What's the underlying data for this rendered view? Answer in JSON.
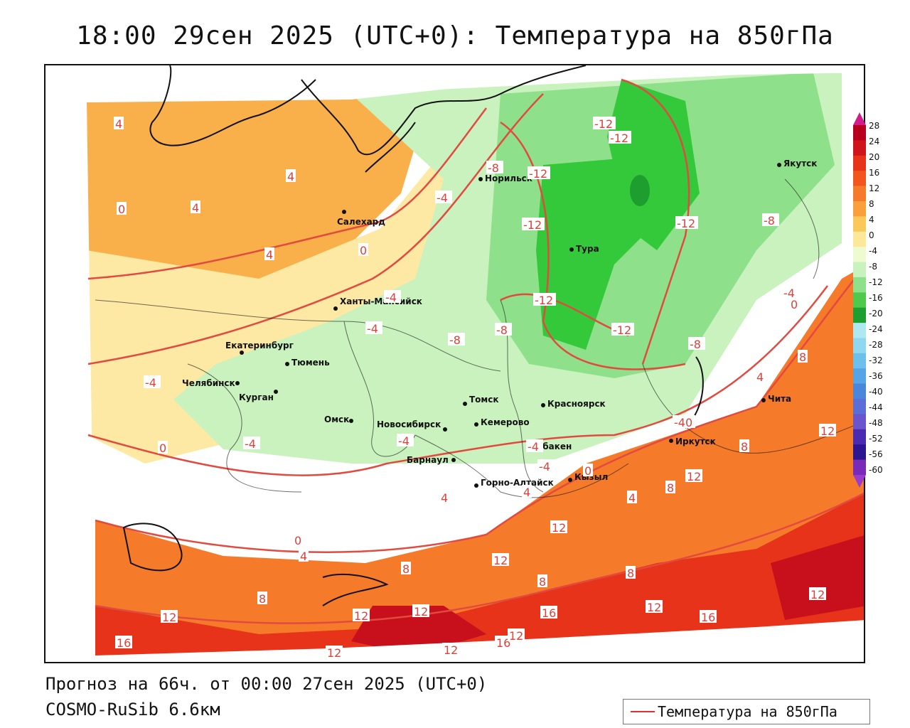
{
  "title": "18:00 29сен 2025 (UTC+0): Температура на 850гПа",
  "footer": {
    "forecast": "Прогноз на 66ч. от 00:00 27сен 2025 (UTC+0)",
    "model": "COSMO-RuSib 6.6км"
  },
  "legend": {
    "line_label": "Температура на 850гПа",
    "line_color": "#e03030"
  },
  "colorbar": {
    "labels": [
      "28",
      "24",
      "20",
      "16",
      "12",
      "8",
      "4",
      "0",
      "-4",
      "-8",
      "-12",
      "-16",
      "-20",
      "-24",
      "-28",
      "-32",
      "-36",
      "-40",
      "-44",
      "-48",
      "-52",
      "-56",
      "-60"
    ],
    "colors": [
      "#b8001e",
      "#d0141c",
      "#e6331a",
      "#f2561d",
      "#f57a2a",
      "#f9a03a",
      "#fbc95a",
      "#fde89a",
      "#eefbd0",
      "#c8f3bf",
      "#8fe08a",
      "#4fc94b",
      "#1f9e30",
      "#aee8f0",
      "#8fd8f0",
      "#6ec0ec",
      "#55a4e6",
      "#4a86dc",
      "#5a6ed8",
      "#6b55cc",
      "#4a2ab0",
      "#2d1490",
      "#7a2ab8"
    ]
  },
  "cities": [
    {
      "name": "Норильск"
    },
    {
      "name": "Якутск"
    },
    {
      "name": "Салехард"
    },
    {
      "name": "Тура"
    },
    {
      "name": "Ханты-Мансийск"
    },
    {
      "name": "Екатеринбург"
    },
    {
      "name": "Тюмень"
    },
    {
      "name": "Челябинск"
    },
    {
      "name": "Курган"
    },
    {
      "name": "Омск"
    },
    {
      "name": "Новосибирск"
    },
    {
      "name": "Томск"
    },
    {
      "name": "Кемерово"
    },
    {
      "name": "Красноярск"
    },
    {
      "name": "Барнаул"
    },
    {
      "name": "Абакен"
    },
    {
      "name": "Горно-Алтайск"
    },
    {
      "name": "Кызыл"
    },
    {
      "name": "Иркутск"
    },
    {
      "name": "Чита"
    }
  ],
  "isotherm_labels": [
    "4",
    "4",
    "0",
    "4",
    "4",
    "0",
    "-4",
    "-4",
    "-8",
    "-8",
    "-12",
    "-12",
    "-12",
    "-12",
    "-12",
    "-12",
    "-12",
    "-8",
    "-8",
    "-4",
    "-4",
    "-4",
    "-4",
    "0",
    "-4",
    "-4",
    "0",
    "4",
    "8",
    "4",
    "8",
    "12",
    "12",
    "12",
    "16",
    "12",
    "12",
    "16",
    "12",
    "12",
    "8",
    "8",
    "16",
    "12",
    "12",
    "16",
    "12",
    "-8",
    "-40",
    "8",
    "-4",
    "12",
    "8",
    "4",
    "0",
    "8",
    "4",
    "12",
    "0",
    "4"
  ]
}
